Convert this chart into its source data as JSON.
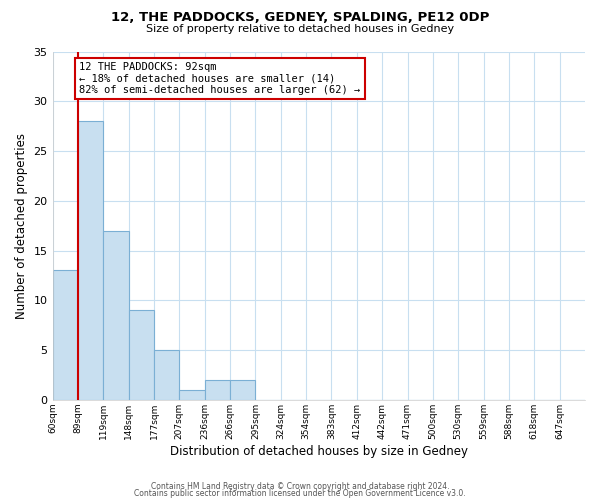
{
  "title": "12, THE PADDOCKS, GEDNEY, SPALDING, PE12 0DP",
  "subtitle": "Size of property relative to detached houses in Gedney",
  "xlabel": "Distribution of detached houses by size in Gedney",
  "ylabel": "Number of detached properties",
  "bar_color": "#c8dff0",
  "bar_edge_color": "#7bafd4",
  "grid_color": "#c8dff0",
  "background_color": "#ffffff",
  "bin_labels": [
    "60sqm",
    "89sqm",
    "119sqm",
    "148sqm",
    "177sqm",
    "207sqm",
    "236sqm",
    "266sqm",
    "295sqm",
    "324sqm",
    "354sqm",
    "383sqm",
    "412sqm",
    "442sqm",
    "471sqm",
    "500sqm",
    "530sqm",
    "559sqm",
    "588sqm",
    "618sqm",
    "647sqm"
  ],
  "counts": [
    13,
    28,
    17,
    9,
    5,
    1,
    2,
    2,
    0,
    0,
    0,
    0,
    0,
    0,
    0,
    0,
    0,
    0,
    0,
    0,
    0
  ],
  "n_bins": 21,
  "ylim": [
    0,
    35
  ],
  "yticks": [
    0,
    5,
    10,
    15,
    20,
    25,
    30,
    35
  ],
  "vline_bin": 1,
  "annotation_title": "12 THE PADDOCKS: 92sqm",
  "annotation_line1": "← 18% of detached houses are smaller (14)",
  "annotation_line2": "82% of semi-detached houses are larger (62) →",
  "annotation_box_color": "#ffffff",
  "annotation_border_color": "#cc0000",
  "vline_color": "#cc0000",
  "footnote1": "Contains HM Land Registry data © Crown copyright and database right 2024.",
  "footnote2": "Contains public sector information licensed under the Open Government Licence v3.0."
}
